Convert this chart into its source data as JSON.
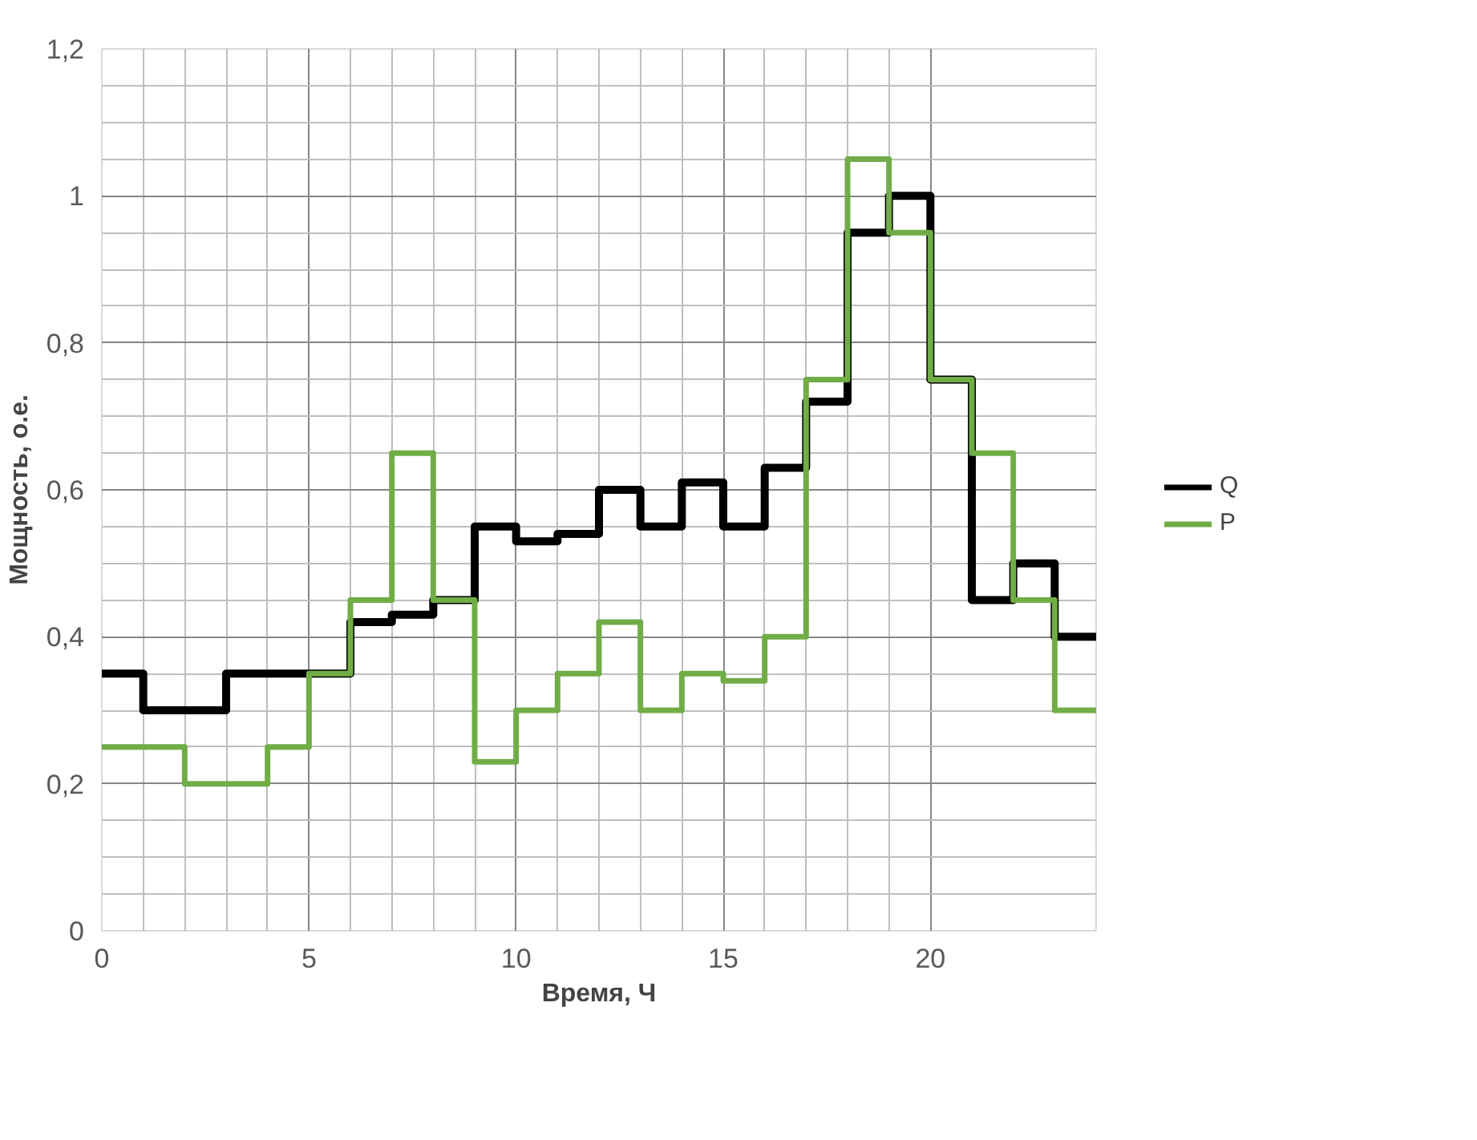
{
  "chart_data": {
    "type": "step",
    "xlabel": "Время, Ч",
    "ylabel": "Мощность, о.е.",
    "x": [
      0,
      1,
      2,
      3,
      4,
      5,
      6,
      7,
      8,
      9,
      10,
      11,
      12,
      13,
      14,
      15,
      16,
      17,
      18,
      19,
      20,
      21,
      22,
      23,
      24
    ],
    "series": [
      {
        "name": "Q",
        "color": "#000000",
        "values": [
          0.35,
          0.3,
          0.3,
          0.35,
          0.35,
          0.35,
          0.42,
          0.43,
          0.45,
          0.55,
          0.53,
          0.54,
          0.6,
          0.55,
          0.61,
          0.55,
          0.63,
          0.72,
          0.95,
          1.0,
          0.75,
          0.45,
          0.5,
          0.4,
          0.4
        ]
      },
      {
        "name": "P",
        "color": "#70ad47",
        "values": [
          0.25,
          0.25,
          0.2,
          0.2,
          0.25,
          0.35,
          0.45,
          0.65,
          0.45,
          0.23,
          0.3,
          0.35,
          0.42,
          0.3,
          0.35,
          0.34,
          0.4,
          0.75,
          1.05,
          0.95,
          0.75,
          0.65,
          0.45,
          0.3,
          0.3
        ]
      }
    ],
    "xlim": [
      0,
      24
    ],
    "xticks": [
      0,
      5,
      10,
      15,
      20
    ],
    "ylim": [
      0,
      1.2
    ],
    "yticks": [
      {
        "value": 0,
        "label": "0"
      },
      {
        "value": 0.2,
        "label": "0,2"
      },
      {
        "value": 0.4,
        "label": "0,4"
      },
      {
        "value": 0.6,
        "label": "0,6"
      },
      {
        "value": 0.8,
        "label": "0,8"
      },
      {
        "value": 1,
        "label": "1"
      },
      {
        "value": 1.2,
        "label": "1,2"
      }
    ],
    "grid": true,
    "legend": "right",
    "line_style": "solid"
  }
}
